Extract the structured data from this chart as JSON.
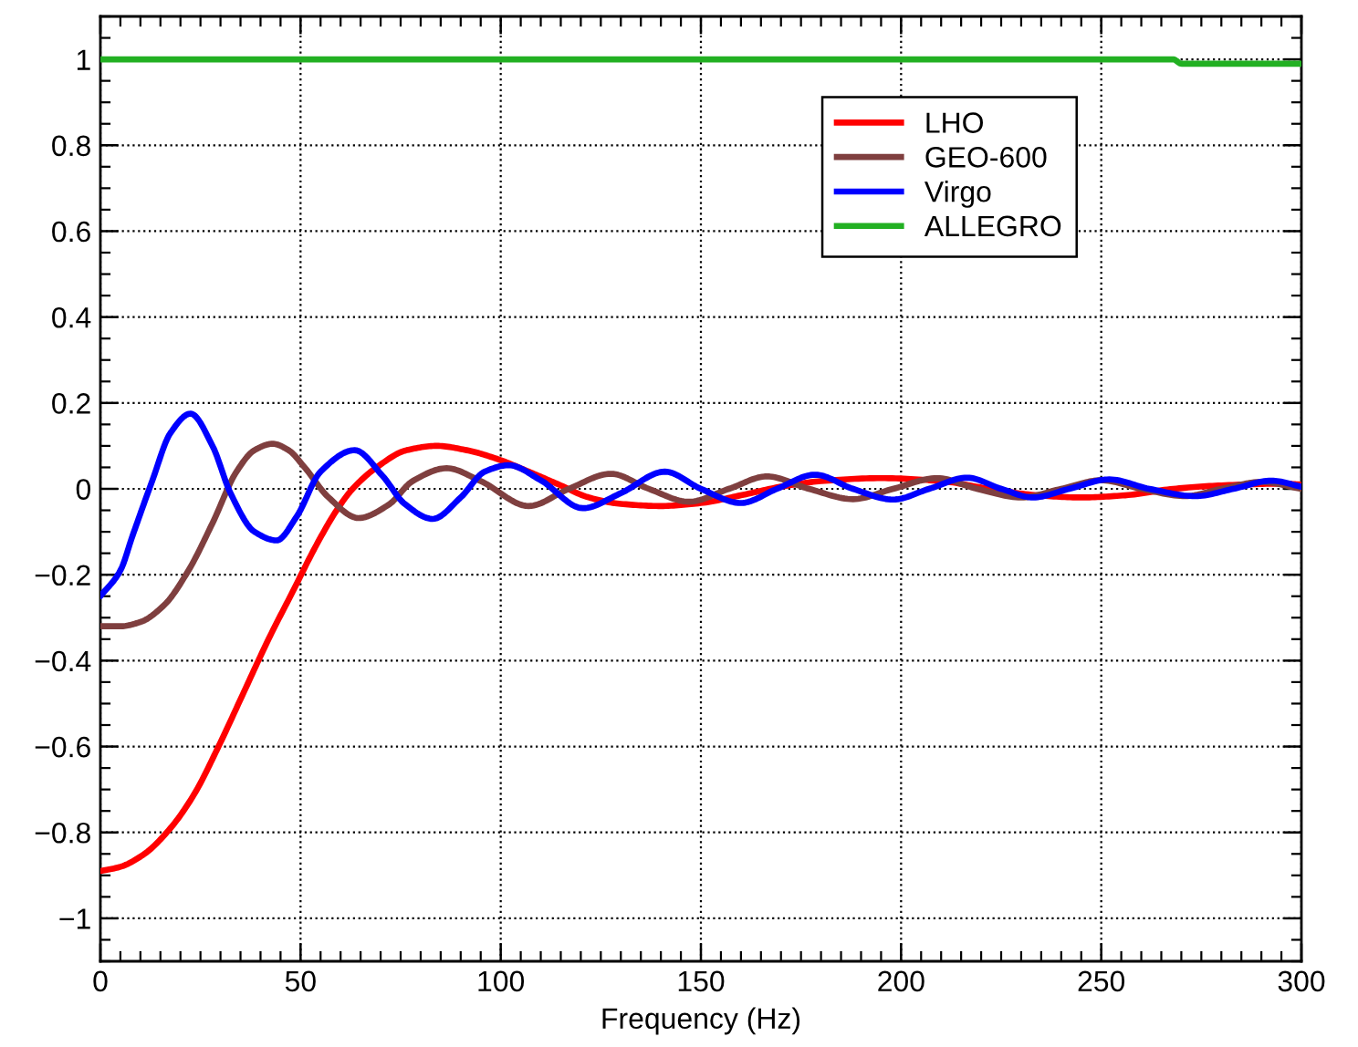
{
  "chart_data": {
    "type": "line",
    "xlabel": "Frequency (Hz)",
    "xlim": [
      0,
      300
    ],
    "xticks": [
      0,
      50,
      100,
      150,
      200,
      250,
      300
    ],
    "ylim": [
      -1.1,
      1.1
    ],
    "yticks": [
      {
        "value": -1,
        "label": "−1"
      },
      {
        "value": -0.8,
        "label": "−0.8"
      },
      {
        "value": -0.6,
        "label": "−0.6"
      },
      {
        "value": -0.4,
        "label": "−0.4"
      },
      {
        "value": -0.2,
        "label": "−0.2"
      },
      0,
      0.2,
      0.4,
      0.6,
      0.8,
      1
    ],
    "grid": true,
    "legend": "top right",
    "line_style": "solid",
    "series": [
      {
        "name": "LHO",
        "color": "#ff0000",
        "x": [
          0,
          5,
          11,
          17.5,
          23.5,
          29.5,
          35.5,
          42,
          48,
          54,
          59,
          63,
          69,
          76.5,
          84,
          91.5,
          99,
          107,
          114.5,
          122,
          130,
          140,
          150,
          160,
          170,
          180,
          195,
          210,
          222,
          234,
          245,
          256,
          268,
          280,
          295,
          300
        ],
        "values": [
          -0.89,
          -0.88,
          -0.85,
          -0.79,
          -0.71,
          -0.6,
          -0.48,
          -0.35,
          -0.24,
          -0.13,
          -0.05,
          0.0,
          0.05,
          0.09,
          0.1,
          0.09,
          0.07,
          0.04,
          0.01,
          -0.02,
          -0.035,
          -0.04,
          -0.033,
          -0.015,
          0.005,
          0.018,
          0.025,
          0.018,
          0.0,
          -0.015,
          -0.02,
          -0.015,
          0.0,
          0.008,
          0.012,
          0.01
        ]
      },
      {
        "name": "GEO-600",
        "color": "#7f3f3f",
        "x": [
          0,
          5,
          10,
          16,
          22,
          28,
          34,
          38.5,
          43,
          47,
          51,
          57,
          64.5,
          72,
          78,
          86.5,
          95,
          107,
          117,
          127.5,
          137,
          147,
          157,
          166.5,
          177,
          188,
          198,
          209,
          219,
          230,
          240,
          250,
          260,
          271,
          280,
          290,
          300
        ],
        "values": [
          -0.32,
          -0.32,
          -0.31,
          -0.27,
          -0.19,
          -0.08,
          0.04,
          0.09,
          0.105,
          0.09,
          0.05,
          -0.02,
          -0.068,
          -0.037,
          0.018,
          0.048,
          0.018,
          -0.04,
          0.0,
          0.035,
          0.0,
          -0.03,
          0.0,
          0.029,
          0.0,
          -0.024,
          0.0,
          0.025,
          0.0,
          -0.02,
          0.0,
          0.02,
          0.0,
          -0.017,
          0.0,
          0.016,
          0.0
        ]
      },
      {
        "name": "Virgo",
        "color": "#0000ff",
        "x": [
          0,
          5,
          8,
          13,
          17.5,
          22.5,
          28,
          32.5,
          38.5,
          44,
          49,
          55,
          63.5,
          70.5,
          76,
          83,
          90,
          96,
          102,
          110,
          120.5,
          130,
          141,
          150,
          160,
          169,
          178.5,
          188,
          198,
          207,
          216.5,
          225,
          233,
          242,
          252,
          262,
          273.5,
          283,
          292.5,
          300
        ],
        "values": [
          -0.25,
          -0.19,
          -0.11,
          0.02,
          0.13,
          0.175,
          0.1,
          -0.01,
          -0.1,
          -0.12,
          -0.065,
          0.04,
          0.09,
          0.03,
          -0.035,
          -0.07,
          -0.02,
          0.04,
          0.055,
          0.02,
          -0.045,
          -0.01,
          0.04,
          0.0,
          -0.033,
          0.0,
          0.033,
          0.0,
          -0.025,
          0.0,
          0.026,
          0.0,
          -0.02,
          0.0,
          0.022,
          0.0,
          -0.017,
          0.0,
          0.019,
          0.005
        ]
      },
      {
        "name": "ALLEGRO",
        "color": "#22b022",
        "x": [
          0,
          268,
          270,
          300
        ],
        "values": [
          1.0,
          1.0,
          0.99,
          0.99
        ]
      }
    ]
  }
}
